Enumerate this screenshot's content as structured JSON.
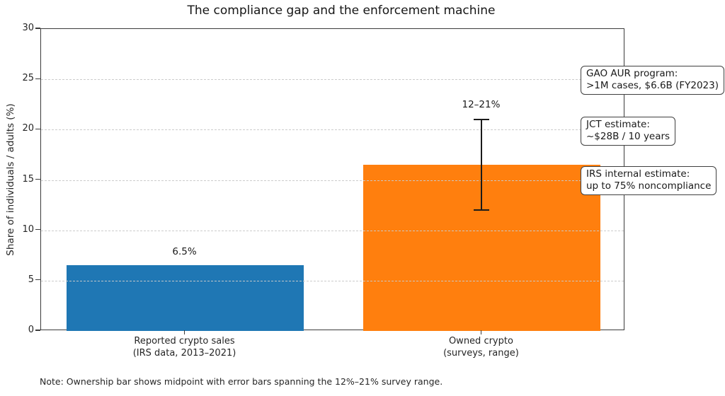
{
  "note": "Note: Ownership bar shows midpoint with error bars spanning the 12%–21% survey range.",
  "chart_data": {
    "type": "bar",
    "title": "The compliance gap and the enforcement machine",
    "xlabel": "",
    "ylabel": "Share of individuals / adults (%)",
    "ylim": [
      0,
      30
    ],
    "yticks": [
      0,
      5,
      10,
      15,
      20,
      25,
      30
    ],
    "grid": "horizontal dashed, drawn over bars",
    "legend": "none",
    "categories": [
      "Reported crypto sales\n(IRS data, 2013–2021)",
      "Owned crypto\n(surveys, range)"
    ],
    "values": [
      6.5,
      16.5
    ],
    "bar_colors": [
      "#1f77b4",
      "#ff7f0e"
    ],
    "bar_value_labels": [
      "6.5%",
      ""
    ],
    "error_bar": {
      "category_index": 1,
      "low": 12,
      "high": 21,
      "label": "12–21%",
      "color": "#1a1a1a"
    },
    "annotations": [
      {
        "text": "GAO AUR program:\n>1M cases, $6.6B (FY2023)"
      },
      {
        "text": "JCT estimate:\n~$28B / 10 years"
      },
      {
        "text": "IRS internal estimate:\nup to 75% noncompliance"
      }
    ]
  }
}
